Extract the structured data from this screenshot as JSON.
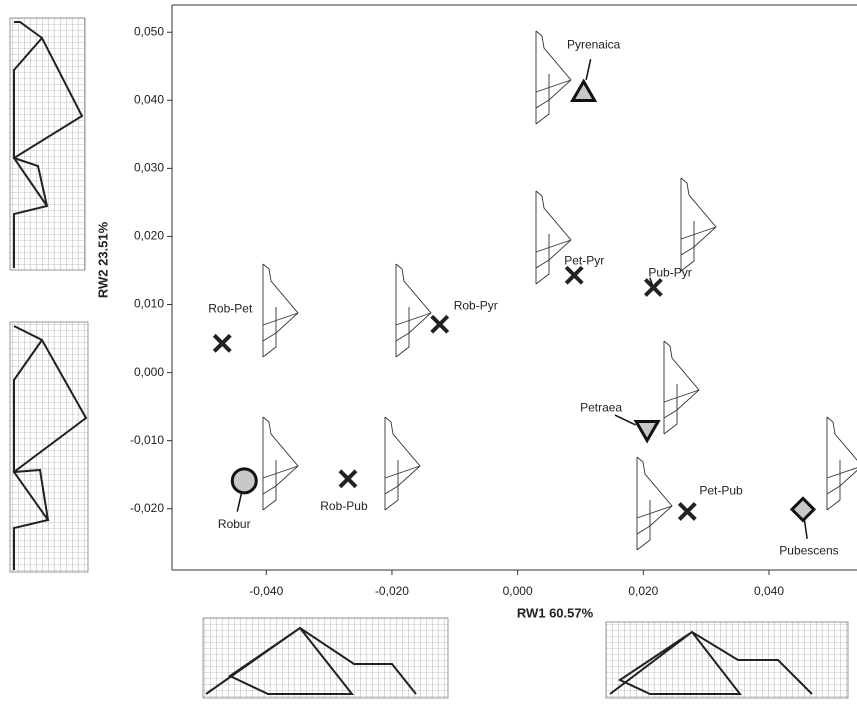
{
  "chart_data": {
    "type": "scatter",
    "x_label": "RW1  60.57%",
    "y_label": "RW2  23.51%",
    "xlim": [
      -0.055,
      0.054
    ],
    "ylim": [
      -0.029,
      0.054
    ],
    "xticks": [
      {
        "value": -0.04,
        "label": "-0,040"
      },
      {
        "value": -0.02,
        "label": "-0,020"
      },
      {
        "value": 0,
        "label": "0,000"
      },
      {
        "value": 0.02,
        "label": "0,020"
      },
      {
        "value": 0.04,
        "label": "0,040"
      }
    ],
    "yticks": [
      {
        "value": -0.02,
        "label": "-0,020"
      },
      {
        "value": -0.01,
        "label": "-0,010"
      },
      {
        "value": 0,
        "label": "0,000"
      },
      {
        "value": 0.01,
        "label": "0,010"
      },
      {
        "value": 0.02,
        "label": "0,020"
      },
      {
        "value": 0.03,
        "label": "0,030"
      },
      {
        "value": 0.04,
        "label": "0,040"
      },
      {
        "value": 0.05,
        "label": "0,050"
      }
    ],
    "points": [
      {
        "label": "Pyrenaica",
        "x": 0.0105,
        "y": 0.0413,
        "marker": "triangle-up",
        "color": "#c8c8c8"
      },
      {
        "label": "Pet-Pyr",
        "x": 0.009,
        "y": 0.0143,
        "marker": "cross",
        "color": "#222222"
      },
      {
        "label": "Pub-Pyr",
        "x": 0.0216,
        "y": 0.0125,
        "marker": "cross",
        "color": "#222222"
      },
      {
        "label": "Rob-Pet",
        "x": -0.047,
        "y": 0.0043,
        "marker": "cross",
        "color": "#222222"
      },
      {
        "label": "Rob-Pyr",
        "x": -0.0124,
        "y": 0.0071,
        "marker": "cross",
        "color": "#222222"
      },
      {
        "label": "Petraea",
        "x": 0.0206,
        "y": -0.0085,
        "marker": "triangle-down",
        "color": "#c8c8c8"
      },
      {
        "label": "Robur",
        "x": -0.0435,
        "y": -0.0159,
        "marker": "circle",
        "color": "#c8c8c8"
      },
      {
        "label": "Rob-Pub",
        "x": -0.027,
        "y": -0.0156,
        "marker": "cross",
        "color": "#222222"
      },
      {
        "label": "Pet-Pub",
        "x": 0.027,
        "y": -0.0204,
        "marker": "cross",
        "color": "#222222"
      },
      {
        "label": "Pubescens",
        "x": 0.0454,
        "y": -0.0201,
        "marker": "diamond",
        "color": "#c8c8c8"
      }
    ]
  }
}
